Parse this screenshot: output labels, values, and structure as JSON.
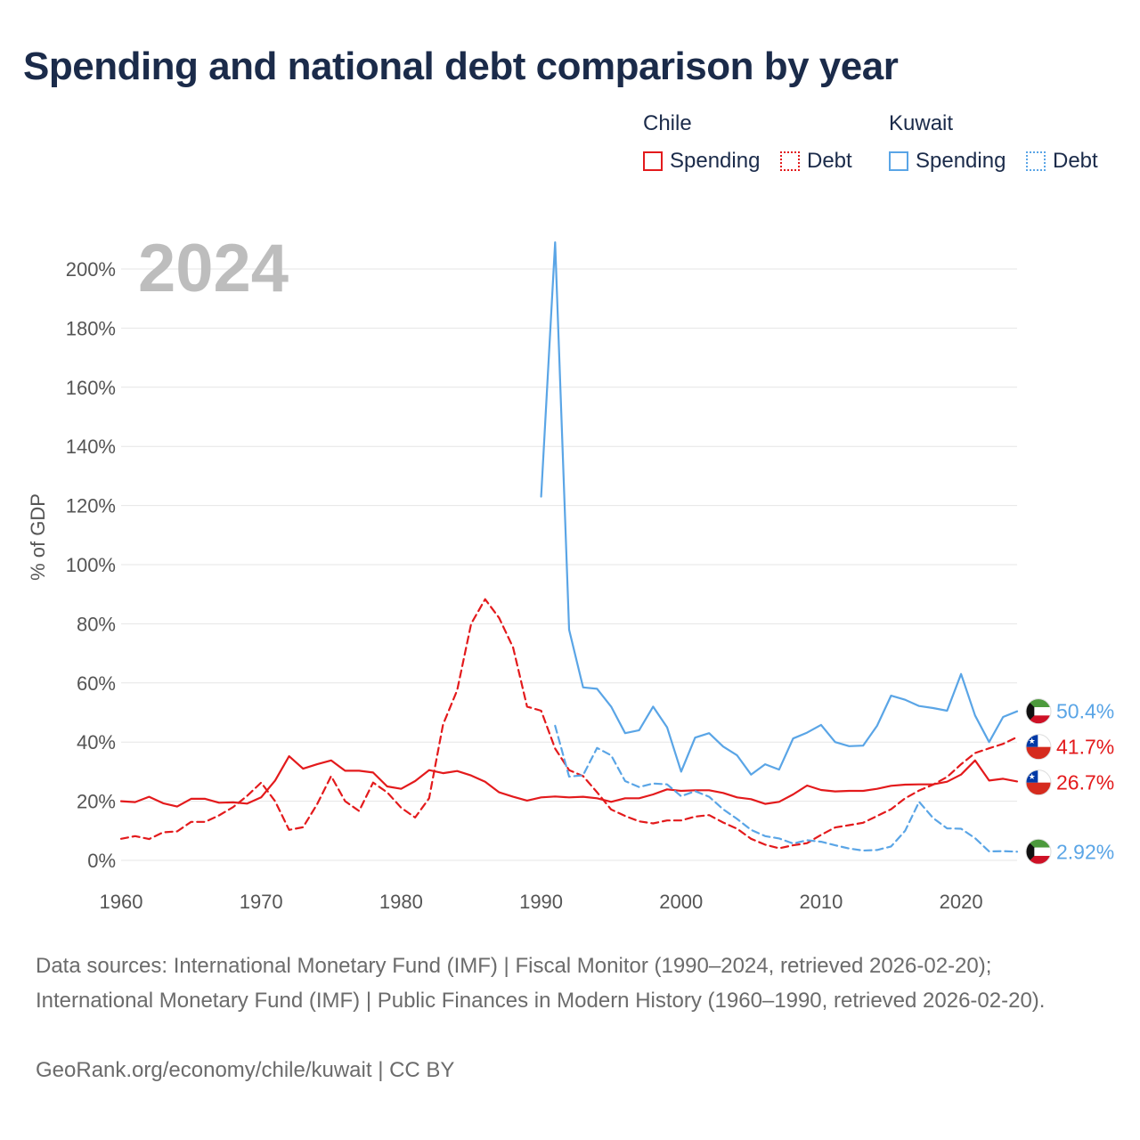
{
  "title": "Spending and national debt comparison by year",
  "legend": {
    "chile": {
      "label": "Chile",
      "spending": "Spending",
      "debt": "Debt"
    },
    "kuwait": {
      "label": "Kuwait",
      "spending": "Spending",
      "debt": "Debt"
    }
  },
  "year_display": "2024",
  "footer": {
    "sources": "Data sources: International Monetary Fund (IMF) | Fiscal Monitor (1990–2024, retrieved 2026-02-20); International Monetary Fund (IMF) | Public Finances in Modern History (1960–1990, retrieved 2026-02-20).",
    "credit": "GeoRank.org/economy/chile/kuwait | CC BY"
  },
  "colors": {
    "chile": "#e31a1c",
    "kuwait": "#5aa5e6",
    "grid": "#e6e6e6",
    "tick": "#555555"
  },
  "chart_data": {
    "type": "line",
    "title": "Spending and national debt comparison by year",
    "ylabel": "% of GDP",
    "xlabel": "",
    "xlim": [
      1960,
      2024
    ],
    "ylim": [
      0,
      210
    ],
    "x_ticks": [
      1960,
      1970,
      1980,
      1990,
      2000,
      2010,
      2020
    ],
    "x_tick_labels": [
      "1960",
      "1970",
      "1980",
      "1990",
      "2000",
      "2010",
      "2020"
    ],
    "y_ticks": [
      0,
      20,
      40,
      60,
      80,
      100,
      120,
      140,
      160,
      180,
      200
    ],
    "y_tick_labels": [
      "0%",
      "20%",
      "40%",
      "60%",
      "80%",
      "100%",
      "120%",
      "140%",
      "160%",
      "180%",
      "200%"
    ],
    "legend_position": "top-right",
    "series": [
      {
        "name": "Chile Spending",
        "country": "Chile",
        "metric": "Spending",
        "style": "solid",
        "color": "#e31a1c",
        "end_label": "26.7%",
        "points": [
          [
            1960,
            20
          ],
          [
            1961,
            19.7
          ],
          [
            1962,
            21.5
          ],
          [
            1963,
            19.3
          ],
          [
            1964,
            18.2
          ],
          [
            1965,
            20.8
          ],
          [
            1966,
            20.8
          ],
          [
            1967,
            19.5
          ],
          [
            1968,
            19.6
          ],
          [
            1969,
            19.2
          ],
          [
            1970,
            21.3
          ],
          [
            1971,
            27
          ],
          [
            1972,
            35.2
          ],
          [
            1973,
            31
          ],
          [
            1974,
            32.5
          ],
          [
            1975,
            33.8
          ],
          [
            1976,
            30.3
          ],
          [
            1977,
            30.3
          ],
          [
            1978,
            29.7
          ],
          [
            1979,
            25
          ],
          [
            1980,
            24.2
          ],
          [
            1981,
            26.8
          ],
          [
            1982,
            30.5
          ],
          [
            1983,
            29.5
          ],
          [
            1984,
            30.2
          ],
          [
            1985,
            28.7
          ],
          [
            1986,
            26.6
          ],
          [
            1987,
            23
          ],
          [
            1988,
            21.5
          ],
          [
            1989,
            20.2
          ],
          [
            1990,
            21.3
          ],
          [
            1991,
            21.6
          ],
          [
            1992,
            21.3
          ],
          [
            1993,
            21.5
          ],
          [
            1994,
            21
          ],
          [
            1995,
            19.8
          ],
          [
            1996,
            21
          ],
          [
            1997,
            21
          ],
          [
            1998,
            22.3
          ],
          [
            1999,
            24
          ],
          [
            2000,
            23.5
          ],
          [
            2001,
            23.7
          ],
          [
            2002,
            23.7
          ],
          [
            2003,
            22.8
          ],
          [
            2004,
            21.3
          ],
          [
            2005,
            20.7
          ],
          [
            2006,
            19.1
          ],
          [
            2007,
            19.8
          ],
          [
            2008,
            22.3
          ],
          [
            2009,
            25.3
          ],
          [
            2010,
            23.8
          ],
          [
            2011,
            23.3
          ],
          [
            2012,
            23.5
          ],
          [
            2013,
            23.5
          ],
          [
            2014,
            24.2
          ],
          [
            2015,
            25.2
          ],
          [
            2016,
            25.6
          ],
          [
            2017,
            25.7
          ],
          [
            2018,
            25.7
          ],
          [
            2019,
            26.6
          ],
          [
            2020,
            29
          ],
          [
            2021,
            33.8
          ],
          [
            2022,
            27
          ],
          [
            2023,
            27.6
          ],
          [
            2024,
            26.7
          ]
        ]
      },
      {
        "name": "Chile Debt",
        "country": "Chile",
        "metric": "Debt",
        "style": "dashed",
        "color": "#e31a1c",
        "end_label": "41.7%",
        "points": [
          [
            1960,
            7.3
          ],
          [
            1961,
            8.2
          ],
          [
            1962,
            7.2
          ],
          [
            1963,
            9.5
          ],
          [
            1964,
            9.8
          ],
          [
            1965,
            13
          ],
          [
            1966,
            13
          ],
          [
            1967,
            15.2
          ],
          [
            1968,
            18
          ],
          [
            1969,
            21.8
          ],
          [
            1970,
            26.3
          ],
          [
            1971,
            20
          ],
          [
            1972,
            10.3
          ],
          [
            1973,
            11.2
          ],
          [
            1974,
            19
          ],
          [
            1975,
            28.5
          ],
          [
            1976,
            20
          ],
          [
            1977,
            16.7
          ],
          [
            1978,
            26.3
          ],
          [
            1979,
            23
          ],
          [
            1980,
            17.8
          ],
          [
            1981,
            14.5
          ],
          [
            1982,
            21
          ],
          [
            1983,
            46
          ],
          [
            1984,
            57.5
          ],
          [
            1985,
            80
          ],
          [
            1986,
            88.3
          ],
          [
            1987,
            82
          ],
          [
            1988,
            72
          ],
          [
            1989,
            52
          ],
          [
            1990,
            50.6
          ],
          [
            1991,
            37.8
          ],
          [
            1992,
            30.5
          ],
          [
            1993,
            28.5
          ],
          [
            1994,
            23
          ],
          [
            1995,
            17.2
          ],
          [
            1996,
            15
          ],
          [
            1997,
            13.2
          ],
          [
            1998,
            12.5
          ],
          [
            1999,
            13.5
          ],
          [
            2000,
            13.5
          ],
          [
            2001,
            14.8
          ],
          [
            2002,
            15.3
          ],
          [
            2003,
            12.8
          ],
          [
            2004,
            10.7
          ],
          [
            2005,
            7.3
          ],
          [
            2006,
            5.3
          ],
          [
            2007,
            4.1
          ],
          [
            2008,
            5.1
          ],
          [
            2009,
            5.8
          ],
          [
            2010,
            8.6
          ],
          [
            2011,
            11.1
          ],
          [
            2012,
            11.9
          ],
          [
            2013,
            12.7
          ],
          [
            2014,
            15
          ],
          [
            2015,
            17.3
          ],
          [
            2016,
            21
          ],
          [
            2017,
            23.6
          ],
          [
            2018,
            25.6
          ],
          [
            2019,
            28.2
          ],
          [
            2020,
            32.5
          ],
          [
            2021,
            36.3
          ],
          [
            2022,
            37.9
          ],
          [
            2023,
            39.4
          ],
          [
            2024,
            41.7
          ]
        ]
      },
      {
        "name": "Kuwait Spending",
        "country": "Kuwait",
        "metric": "Spending",
        "style": "solid",
        "color": "#5aa5e6",
        "end_label": "50.4%",
        "points": [
          [
            1990,
            123
          ],
          [
            1991,
            209
          ],
          [
            1992,
            78
          ],
          [
            1993,
            58.5
          ],
          [
            1994,
            58
          ],
          [
            1995,
            52
          ],
          [
            1996,
            43
          ],
          [
            1997,
            44
          ],
          [
            1998,
            52
          ],
          [
            1999,
            45
          ],
          [
            2000,
            30
          ],
          [
            2001,
            41.5
          ],
          [
            2002,
            43
          ],
          [
            2003,
            38.5
          ],
          [
            2004,
            35.5
          ],
          [
            2005,
            29
          ],
          [
            2006,
            32.5
          ],
          [
            2007,
            30.7
          ],
          [
            2008,
            41.2
          ],
          [
            2009,
            43.2
          ],
          [
            2010,
            45.8
          ],
          [
            2011,
            40
          ],
          [
            2012,
            38.6
          ],
          [
            2013,
            38.8
          ],
          [
            2014,
            45.5
          ],
          [
            2015,
            55.7
          ],
          [
            2016,
            54.3
          ],
          [
            2017,
            52.2
          ],
          [
            2018,
            51.5
          ],
          [
            2019,
            50.6
          ],
          [
            2020,
            63
          ],
          [
            2021,
            49
          ],
          [
            2022,
            40
          ],
          [
            2023,
            48.5
          ],
          [
            2024,
            50.4
          ]
        ]
      },
      {
        "name": "Kuwait Debt",
        "country": "Kuwait",
        "metric": "Debt",
        "style": "dashed",
        "color": "#5aa5e6",
        "end_label": "2.92%",
        "points": [
          [
            1991,
            45.5
          ],
          [
            1992,
            28.3
          ],
          [
            1993,
            28.8
          ],
          [
            1994,
            38
          ],
          [
            1995,
            35.5
          ],
          [
            1996,
            26.8
          ],
          [
            1997,
            24.8
          ],
          [
            1998,
            26
          ],
          [
            1999,
            25.7
          ],
          [
            2000,
            21.7
          ],
          [
            2001,
            23.4
          ],
          [
            2002,
            21.5
          ],
          [
            2003,
            17.3
          ],
          [
            2004,
            14
          ],
          [
            2005,
            10.3
          ],
          [
            2006,
            8.2
          ],
          [
            2007,
            7.4
          ],
          [
            2008,
            5.7
          ],
          [
            2009,
            6.8
          ],
          [
            2010,
            6.3
          ],
          [
            2011,
            5.1
          ],
          [
            2012,
            4
          ],
          [
            2013,
            3.3
          ],
          [
            2014,
            3.5
          ],
          [
            2015,
            4.7
          ],
          [
            2016,
            10
          ],
          [
            2017,
            19.8
          ],
          [
            2018,
            14.3
          ],
          [
            2019,
            10.8
          ],
          [
            2020,
            10.7
          ],
          [
            2021,
            7.5
          ],
          [
            2022,
            3
          ],
          [
            2023,
            3.1
          ],
          [
            2024,
            2.92
          ]
        ]
      }
    ]
  }
}
